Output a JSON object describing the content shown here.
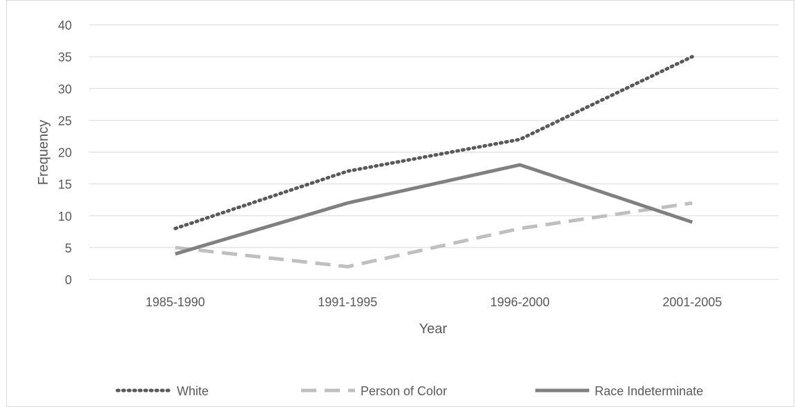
{
  "chart_data": {
    "type": "line",
    "title": "",
    "xlabel": "Year",
    "ylabel": "Frequency",
    "categories": [
      "1985-1990",
      "1991-1995",
      "1996-2000",
      "2001-2005"
    ],
    "ylim": [
      0,
      40
    ],
    "yticks": [
      "0",
      "5",
      "10",
      "15",
      "20",
      "25",
      "30",
      "35",
      "40"
    ],
    "grid": true,
    "legend_position": "bottom",
    "series": [
      {
        "name": "White",
        "values": [
          8,
          17,
          22,
          35
        ],
        "color": "#595959",
        "style": "dotted"
      },
      {
        "name": "Person of Color",
        "values": [
          5,
          2,
          8,
          12
        ],
        "color": "#bfbfbf",
        "style": "dashed"
      },
      {
        "name": "Race Indeterminate",
        "values": [
          4,
          12,
          18,
          9
        ],
        "color": "#808080",
        "style": "solid"
      }
    ]
  }
}
